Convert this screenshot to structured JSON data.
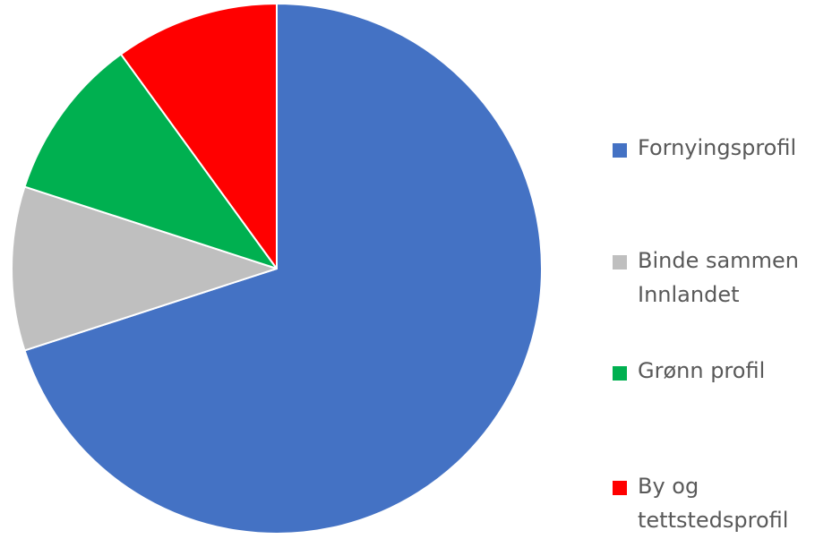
{
  "chart_data": {
    "type": "pie",
    "title": "",
    "start_angle_deg": 0,
    "direction": "clockwise",
    "slice_border_color": "#ffffff",
    "legend_position": "right",
    "slices": [
      {
        "label": "Fornyingsprofil",
        "value": 70,
        "color": "#4472C4"
      },
      {
        "label": "Binde sammen Innlandet",
        "value": 10,
        "color": "#BFBFBF"
      },
      {
        "label": "Grønn profil",
        "value": 10,
        "color": "#00B050"
      },
      {
        "label": "By og tettstedsprofil",
        "value": 10,
        "color": "#FF0000"
      }
    ]
  },
  "legend": {
    "items": [
      {
        "label": "Fornyingsprofil",
        "color": "#4472C4"
      },
      {
        "label": "Binde sammen\nInnlandet",
        "color": "#BFBFBF"
      },
      {
        "label": "Grønn profil",
        "color": "#00B050"
      },
      {
        "label": "By og\ntettstedsprofil",
        "color": "#FF0000"
      }
    ]
  }
}
